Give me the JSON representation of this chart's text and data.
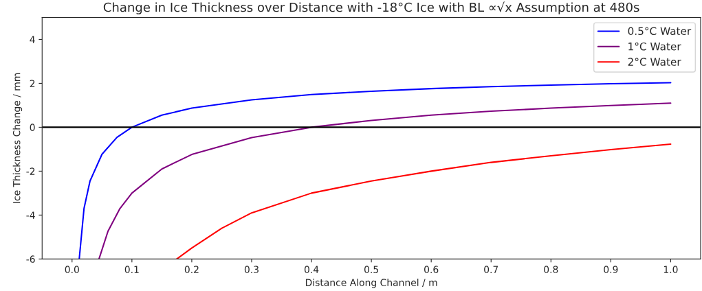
{
  "chart_data": {
    "type": "line",
    "title": "Change in Ice Thickness over Distance with -18°C Ice with BL ∝√x Assumption at 480s",
    "xlabel": "Distance Along Channel / m",
    "ylabel": "Ice Thickness Change / mm",
    "series": [
      {
        "name": "0.5°C Water",
        "color": "#0000ff",
        "x": [
          0.012,
          0.02,
          0.03,
          0.05,
          0.075,
          0.1,
          0.15,
          0.2,
          0.3,
          0.4,
          0.5,
          0.6,
          0.7,
          0.8,
          0.9,
          1.0
        ],
        "values": [
          -6,
          -3.7,
          -2.45,
          -1.23,
          -0.46,
          0,
          0.55,
          0.87,
          1.25,
          1.49,
          1.64,
          1.76,
          1.85,
          1.92,
          1.98,
          2.03
        ]
      },
      {
        "name": "1°C Water",
        "color": "#800080",
        "x": [
          0.045,
          0.06,
          0.08,
          0.1,
          0.15,
          0.2,
          0.3,
          0.4,
          0.5,
          0.6,
          0.7,
          0.8,
          0.9,
          1.0
        ],
        "values": [
          -6,
          -4.74,
          -3.7,
          -3.0,
          -1.9,
          -1.24,
          -0.47,
          0,
          0.31,
          0.55,
          0.73,
          0.87,
          0.99,
          1.1
        ]
      },
      {
        "name": "2°C Water",
        "color": "#ff0000",
        "x": [
          0.175,
          0.2,
          0.25,
          0.3,
          0.4,
          0.5,
          0.6,
          0.7,
          0.8,
          0.9,
          1.0
        ],
        "values": [
          -6,
          -5.5,
          -4.6,
          -3.9,
          -3.0,
          -2.45,
          -2.0,
          -1.6,
          -1.3,
          -1.02,
          -0.77
        ]
      }
    ],
    "xlim": [
      -0.05,
      1.05
    ],
    "xticks": [
      {
        "value": 0,
        "label": "0.0"
      },
      0.1,
      0.2,
      0.3,
      0.4,
      0.5,
      0.6,
      0.7,
      0.8,
      0.9,
      {
        "value": 1,
        "label": "1.0"
      }
    ],
    "ylim": [
      -6,
      5
    ],
    "yticks": [
      -6,
      -4,
      -2,
      0,
      2,
      4
    ],
    "ref_lines": [
      {
        "axis": "y",
        "value": 0,
        "color": "#000000"
      }
    ],
    "legend": "top right",
    "grid": false,
    "marker": "none",
    "line_style": "solid"
  }
}
